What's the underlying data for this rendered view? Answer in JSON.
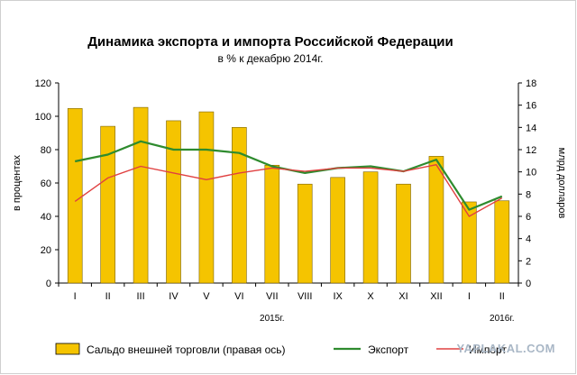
{
  "chart_data": {
    "type": "bar+line",
    "title": "Динамика экспорта и импорта Российской Федерации",
    "subtitle": "в % к декабрю 2014г.",
    "categories": [
      "I",
      "II",
      "III",
      "IV",
      "V",
      "VI",
      "VII",
      "VIII",
      "IX",
      "X",
      "XI",
      "XII",
      "I",
      "II"
    ],
    "year_labels": [
      {
        "label": "2015г.",
        "index": 6
      },
      {
        "label": "2016г.",
        "index": 13
      }
    ],
    "ylabel_left": "в процентах",
    "ylabel_right": "млрд долларов",
    "ylim_left": [
      0,
      120
    ],
    "yticks_left": [
      0,
      20,
      40,
      60,
      80,
      100,
      120
    ],
    "ylim_right": [
      0,
      18
    ],
    "yticks_right": [
      0,
      2,
      4,
      6,
      8,
      10,
      12,
      14,
      16,
      18
    ],
    "series": [
      {
        "name": "Сальдо внешней торговли (правая ось)",
        "kind": "bar",
        "axis": "right",
        "color": "#f5c400",
        "values": [
          15.7,
          14.1,
          15.8,
          14.6,
          15.4,
          14.0,
          10.6,
          8.9,
          9.5,
          10.0,
          8.9,
          11.4,
          7.3,
          7.4
        ]
      },
      {
        "name": "Экспорт",
        "kind": "line",
        "axis": "left",
        "color": "#2e8b2e",
        "values": [
          73,
          77,
          85,
          80,
          80,
          78,
          70,
          66,
          69,
          70,
          67,
          74,
          44,
          52
        ]
      },
      {
        "name": "Импорт",
        "kind": "line",
        "axis": "left",
        "color": "#e04040",
        "values": [
          49,
          63,
          70,
          66,
          62,
          66,
          69,
          67,
          69,
          69,
          67,
          71,
          40,
          51
        ]
      }
    ],
    "legend_position": "bottom"
  },
  "watermark": "YAPLAKAL.COM"
}
